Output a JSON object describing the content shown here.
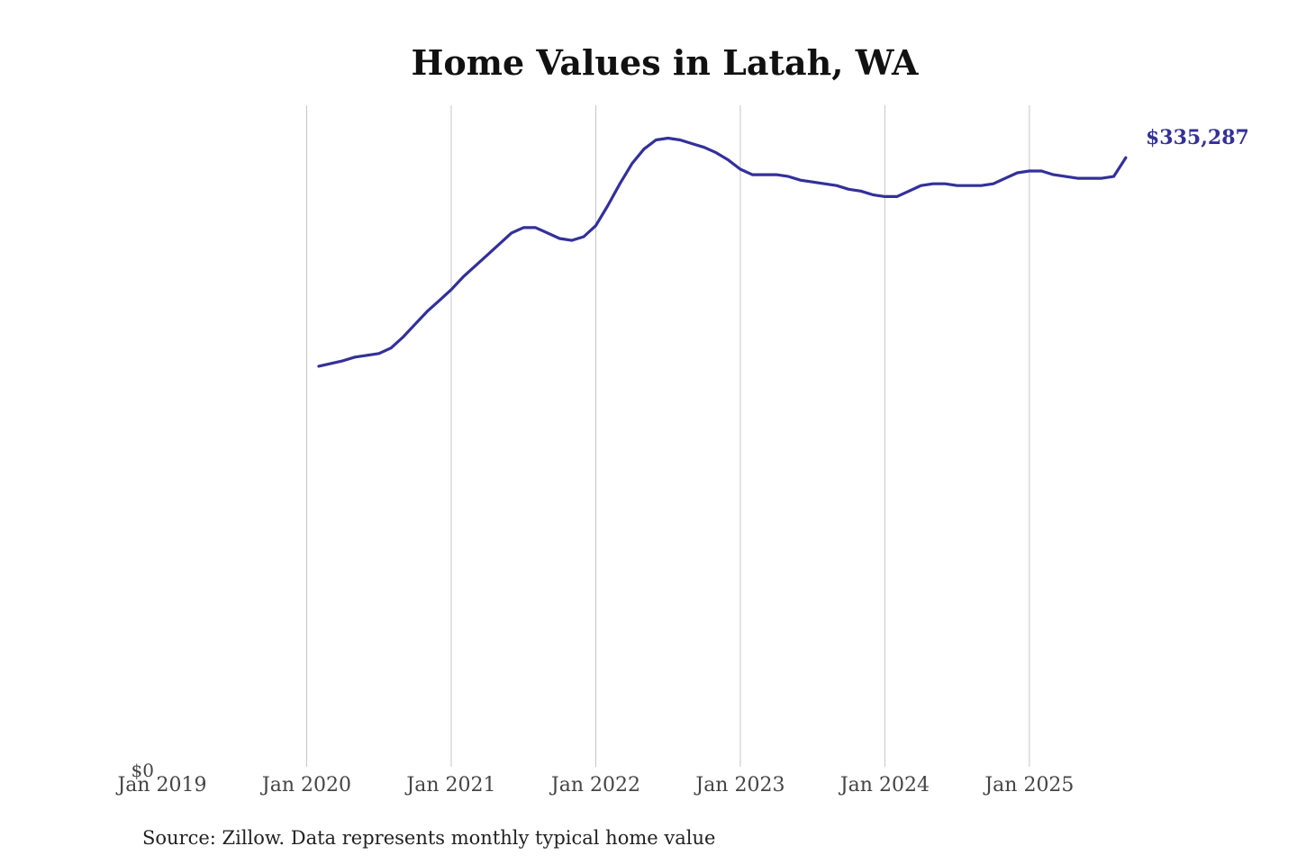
{
  "chart_data": {
    "type": "line",
    "title": "Home Values in Latah, WA",
    "source": "Source: Zillow. Data represents monthly typical home value",
    "xlim": [
      "2019-01",
      "2025-12"
    ],
    "ylim": [
      0,
      365000
    ],
    "y_tick_labels": [
      {
        "value": 0,
        "label": "$0"
      }
    ],
    "x_ticks": [
      {
        "date": "2019-01",
        "label": "Jan 2019"
      },
      {
        "date": "2020-01",
        "label": "Jan 2020"
      },
      {
        "date": "2021-01",
        "label": "Jan 2021"
      },
      {
        "date": "2022-01",
        "label": "Jan 2022"
      },
      {
        "date": "2023-01",
        "label": "Jan 2023"
      },
      {
        "date": "2024-01",
        "label": "Jan 2024"
      },
      {
        "date": "2025-01",
        "label": "Jan 2025"
      }
    ],
    "vertical_grid": true,
    "line_color": "#33309a",
    "end_label": "$335,287",
    "series": [
      {
        "x": [
          "2020-02",
          "2020-04",
          "2020-05",
          "2020-07",
          "2020-08",
          "2020-09",
          "2020-10",
          "2020-11",
          "2020-12",
          "2021-01",
          "2021-02",
          "2021-03",
          "2021-04",
          "2021-05",
          "2021-06",
          "2021-07",
          "2021-08",
          "2021-09",
          "2021-10",
          "2021-11",
          "2021-12",
          "2022-01",
          "2022-02",
          "2022-03",
          "2022-04",
          "2022-05",
          "2022-06",
          "2022-07",
          "2022-08",
          "2022-09",
          "2022-10",
          "2022-11",
          "2022-12",
          "2023-01",
          "2023-02",
          "2023-03",
          "2023-04",
          "2023-05",
          "2023-06",
          "2023-07",
          "2023-08",
          "2023-09",
          "2023-10",
          "2023-11",
          "2023-12",
          "2024-01",
          "2024-02",
          "2024-03",
          "2024-04",
          "2024-05",
          "2024-06",
          "2024-07",
          "2024-08",
          "2024-09",
          "2024-10",
          "2024-11",
          "2024-12",
          "2025-01",
          "2025-02",
          "2025-03",
          "2025-04",
          "2025-05",
          "2025-06",
          "2025-07",
          "2025-08",
          "2025-09"
        ],
        "y": [
          221000,
          224000,
          226000,
          228000,
          231000,
          237000,
          244000,
          251000,
          257000,
          263000,
          270000,
          276000,
          282000,
          288000,
          294000,
          297000,
          297000,
          294000,
          291000,
          290000,
          292000,
          298000,
          309000,
          321000,
          332000,
          340000,
          345000,
          346000,
          345000,
          343000,
          341000,
          338000,
          334000,
          329000,
          326000,
          326000,
          326000,
          325000,
          323000,
          322000,
          321000,
          320000,
          318000,
          317000,
          315000,
          314000,
          314000,
          317000,
          320000,
          321000,
          321000,
          320000,
          320000,
          320000,
          321000,
          324000,
          327000,
          328000,
          328000,
          326000,
          325000,
          324000,
          324000,
          324000,
          325000,
          335287
        ]
      }
    ]
  }
}
